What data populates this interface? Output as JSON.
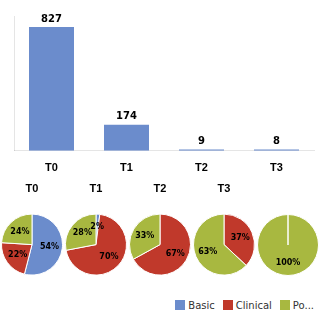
{
  "chart_data": [
    {
      "type": "bar",
      "categories": [
        "T0",
        "T1",
        "T2",
        "T3"
      ],
      "values": [
        827,
        174,
        9,
        8
      ],
      "color": "#6b8ccc",
      "ylim": [
        0,
        900
      ],
      "yticks": [],
      "grid": false,
      "data_labels": true,
      "tick_labels": "x"
    },
    {
      "type": "pie",
      "title": "T0",
      "categories": [
        "Basic",
        "Clinical",
        "Po..."
      ],
      "values": [
        54,
        22,
        24
      ],
      "value_labels": [
        "54%",
        "22%",
        "24%"
      ],
      "colors": [
        "#6b8ccc",
        "#c0392b",
        "#a8b840"
      ],
      "data_labels": true,
      "legend": "lower right"
    },
    {
      "type": "pie",
      "title": "T1",
      "categories": [
        "Basic",
        "Clinical",
        "Po..."
      ],
      "values": [
        2,
        70,
        28
      ],
      "value_labels": [
        "2%",
        "70%",
        "28%"
      ],
      "colors": [
        "#6b8ccc",
        "#c0392b",
        "#a8b840"
      ],
      "data_labels": true
    },
    {
      "type": "pie",
      "title": "T2",
      "categories": [
        "Clinical",
        "Po..."
      ],
      "values": [
        67,
        33
      ],
      "value_labels": [
        "67%",
        "33%"
      ],
      "colors": [
        "#c0392b",
        "#a8b840"
      ],
      "data_labels": true
    },
    {
      "type": "pie",
      "title": "T3",
      "categories": [
        "Clinical",
        "Po..."
      ],
      "values": [
        37,
        63
      ],
      "value_labels": [
        "37%",
        "63%"
      ],
      "colors": [
        "#c0392b",
        "#a8b840"
      ],
      "data_labels": true
    },
    {
      "type": "pie",
      "categories": [
        "Po..."
      ],
      "values": [
        100
      ],
      "value_labels": [
        "100%"
      ],
      "colors": [
        "#a8b840"
      ],
      "data_labels": true
    }
  ]
}
